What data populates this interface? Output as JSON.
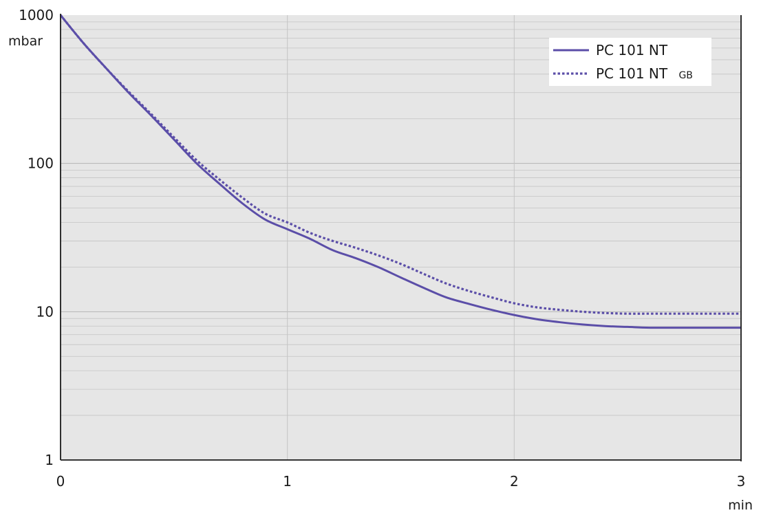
{
  "chart_data": {
    "type": "line",
    "title": "",
    "xlabel": "min",
    "ylabel": "mbar",
    "xlim": [
      0,
      3
    ],
    "ylim": [
      1,
      1000
    ],
    "y_scale": "log",
    "grid": true,
    "legend_position": "top-right",
    "x_ticks": [
      0,
      1,
      2,
      3
    ],
    "x_tick_labels": [
      "0",
      "1",
      "2",
      "3"
    ],
    "y_ticks": [
      1,
      10,
      100,
      1000
    ],
    "y_tick_labels": [
      "1",
      "10",
      "100",
      "1000"
    ],
    "series": [
      {
        "name": "PC 101 NT",
        "style": "solid",
        "color": "#5b4ea8",
        "x": [
          0,
          0.1,
          0.2,
          0.3,
          0.4,
          0.5,
          0.6,
          0.7,
          0.8,
          0.9,
          1.0,
          1.1,
          1.2,
          1.3,
          1.4,
          1.5,
          1.6,
          1.7,
          1.8,
          1.9,
          2.0,
          2.1,
          2.2,
          2.3,
          2.4,
          2.5,
          2.6,
          2.8,
          3.0
        ],
        "y": [
          1000,
          650,
          440,
          300,
          210,
          145,
          100,
          73,
          54,
          42,
          36,
          31,
          26,
          23,
          20,
          17,
          14.5,
          12.5,
          11.3,
          10.3,
          9.5,
          8.9,
          8.5,
          8.2,
          8.0,
          7.9,
          7.8,
          7.8,
          7.8
        ]
      },
      {
        "name": "PC 101 NT",
        "name_suffix": "GB",
        "style": "dotted",
        "color": "#5b4ea8",
        "x": [
          0,
          0.1,
          0.2,
          0.3,
          0.4,
          0.5,
          0.6,
          0.7,
          0.8,
          0.9,
          1.0,
          1.1,
          1.2,
          1.3,
          1.4,
          1.5,
          1.6,
          1.7,
          1.8,
          1.9,
          2.0,
          2.1,
          2.2,
          2.3,
          2.4,
          2.5,
          2.6,
          2.8,
          3.0
        ],
        "y": [
          1000,
          650,
          440,
          305,
          215,
          150,
          105,
          78,
          59,
          46,
          40,
          34,
          30,
          27,
          24,
          21,
          18,
          15.5,
          13.8,
          12.5,
          11.4,
          10.7,
          10.3,
          10.0,
          9.8,
          9.7,
          9.7,
          9.7,
          9.7
        ]
      }
    ]
  },
  "colors": {
    "plot_background": "#e6e6e6",
    "grid": "#c4c4c4",
    "axis": "#1a1a1a",
    "legend_background": "#ffffff",
    "series": "#5b4ea8"
  }
}
